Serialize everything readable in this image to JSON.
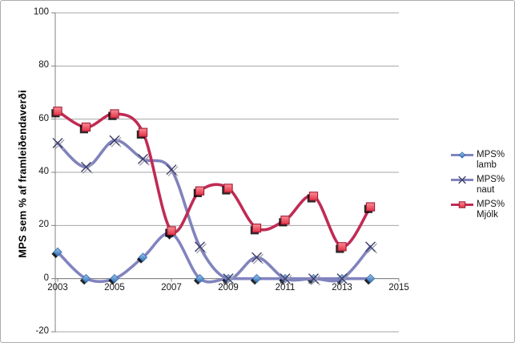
{
  "chart_data": {
    "type": "line",
    "smooth": true,
    "title": "",
    "xlabel": "",
    "ylabel": "MPS sem % af framleiðendaverði",
    "xlim": [
      2003,
      2015
    ],
    "ylim": [
      -20,
      100
    ],
    "grid": true,
    "legend_position": "right-middle",
    "x": [
      2003,
      2004,
      2005,
      2006,
      2007,
      2008,
      2009,
      2010,
      2011,
      2012,
      2013,
      2014
    ],
    "x_ticks": {
      "values": [
        2003,
        2005,
        2007,
        2009,
        2011,
        2013,
        2015
      ],
      "labels": [
        "2003",
        "2005",
        "2007",
        "2009",
        "2011",
        "2013",
        "2015"
      ]
    },
    "y_ticks": {
      "values": [
        100,
        80,
        60,
        40,
        20,
        0,
        -20
      ],
      "labels": [
        "100",
        "80",
        "60",
        "40",
        "20",
        "0",
        "-20"
      ]
    },
    "colors": {
      "gridline": "#A6A6A6",
      "axis": "#808080",
      "text": "#151515"
    },
    "series": [
      {
        "name": "MPS% lamb",
        "legend_lines": [
          "MPS%",
          "lamb"
        ],
        "marker": "diamond",
        "line_color": "#8284C0",
        "marker_fill_top": "#9CC7F2",
        "marker_fill_bottom": "#2E6DB4",
        "marker_border": "#3A6EA8",
        "values": [
          10,
          0,
          0,
          8,
          17,
          0,
          0,
          0,
          0,
          0,
          0,
          0
        ]
      },
      {
        "name": "MPS% naut",
        "legend_lines": [
          "MPS%",
          "naut"
        ],
        "marker": "x",
        "line_color": "#8083BC",
        "marker_stroke": "#3E3E6B",
        "values": [
          51,
          42,
          52,
          45,
          41,
          12,
          0,
          8,
          0,
          0,
          0,
          12
        ]
      },
      {
        "name": "MPS% Mjólk",
        "legend_lines": [
          "MPS%",
          "Mjólk"
        ],
        "marker": "square",
        "line_color": "#C02B55",
        "marker_fill_top": "#FB8D97",
        "marker_fill_bottom": "#E23346",
        "marker_border": "#A01D36",
        "values": [
          63,
          57,
          62,
          55,
          18,
          33,
          34,
          19,
          22,
          31,
          12,
          27
        ]
      }
    ]
  }
}
